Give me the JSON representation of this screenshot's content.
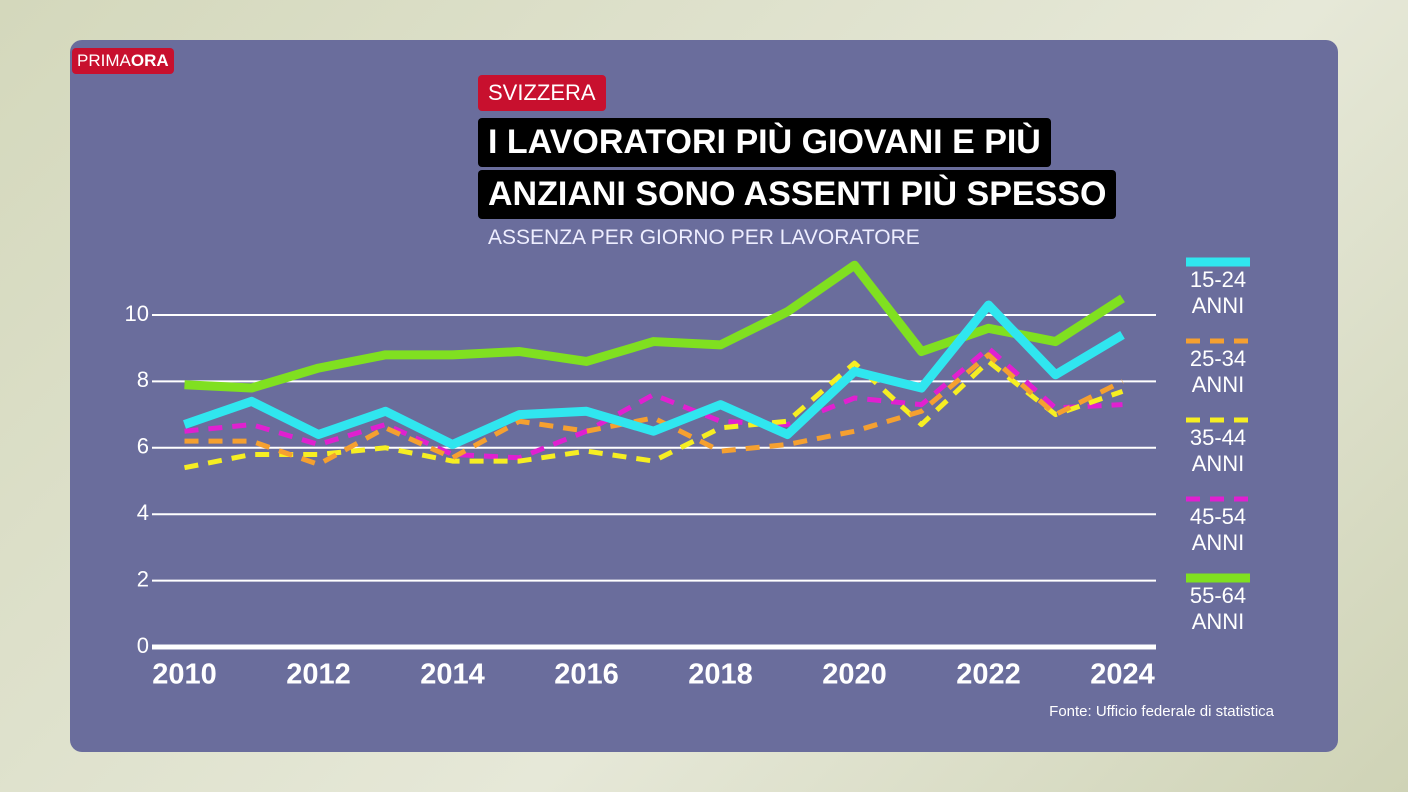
{
  "brand": {
    "prima": "PRIMA",
    "ora": "ORA"
  },
  "chart_data": {
    "type": "line",
    "kicker": "SVIZZERA",
    "title": [
      "I LAVORATORI PIÙ GIOVANI E PIÙ",
      "ANZIANI SONO ASSENTI PIÙ SPESSO"
    ],
    "subtitle": "ASSENZA PER GIORNO PER LAVORATORE",
    "source": "Fonte: Ufficio federale di statistica",
    "x": [
      2010,
      2011,
      2012,
      2013,
      2014,
      2015,
      2016,
      2017,
      2018,
      2019,
      2020,
      2021,
      2022,
      2023,
      2024
    ],
    "xlim": [
      2009.5,
      2024.5
    ],
    "xticks": [
      2010,
      2012,
      2014,
      2016,
      2018,
      2020,
      2022,
      2024
    ],
    "ylim": [
      0,
      10
    ],
    "yticks": [
      0,
      2,
      4,
      6,
      8,
      10
    ],
    "grid": true,
    "legend": "right",
    "series": [
      {
        "name": "15-24 ANNI",
        "color": "#30e6ef",
        "dashed": false,
        "values": [
          6.7,
          7.4,
          6.4,
          7.1,
          6.1,
          7.0,
          7.1,
          6.5,
          7.3,
          6.4,
          8.3,
          7.8,
          10.3,
          8.2,
          9.4
        ]
      },
      {
        "name": "25-34 ANNI",
        "color": "#f5a030",
        "dashed": true,
        "values": [
          6.2,
          6.2,
          5.5,
          6.6,
          5.7,
          6.8,
          6.5,
          6.9,
          5.9,
          6.1,
          6.5,
          7.1,
          8.8,
          7.0,
          8.0
        ]
      },
      {
        "name": "35-44 ANNI",
        "color": "#f6ee22",
        "dashed": true,
        "values": [
          5.4,
          5.8,
          5.8,
          6.0,
          5.6,
          5.6,
          5.9,
          5.6,
          6.6,
          6.8,
          8.55,
          6.7,
          8.6,
          7.0,
          7.7
        ]
      },
      {
        "name": "45-54 ANNI",
        "color": "#e020d0",
        "dashed": true,
        "values": [
          6.5,
          6.7,
          6.1,
          6.7,
          5.8,
          5.7,
          6.5,
          7.6,
          6.8,
          6.7,
          7.5,
          7.3,
          9.0,
          7.2,
          7.3
        ]
      },
      {
        "name": "55-64 ANNI",
        "color": "#80e020",
        "dashed": false,
        "values": [
          7.9,
          7.8,
          8.4,
          8.8,
          8.8,
          8.9,
          8.6,
          9.2,
          9.1,
          10.1,
          11.5,
          8.9,
          9.6,
          9.2,
          10.5
        ]
      }
    ]
  }
}
